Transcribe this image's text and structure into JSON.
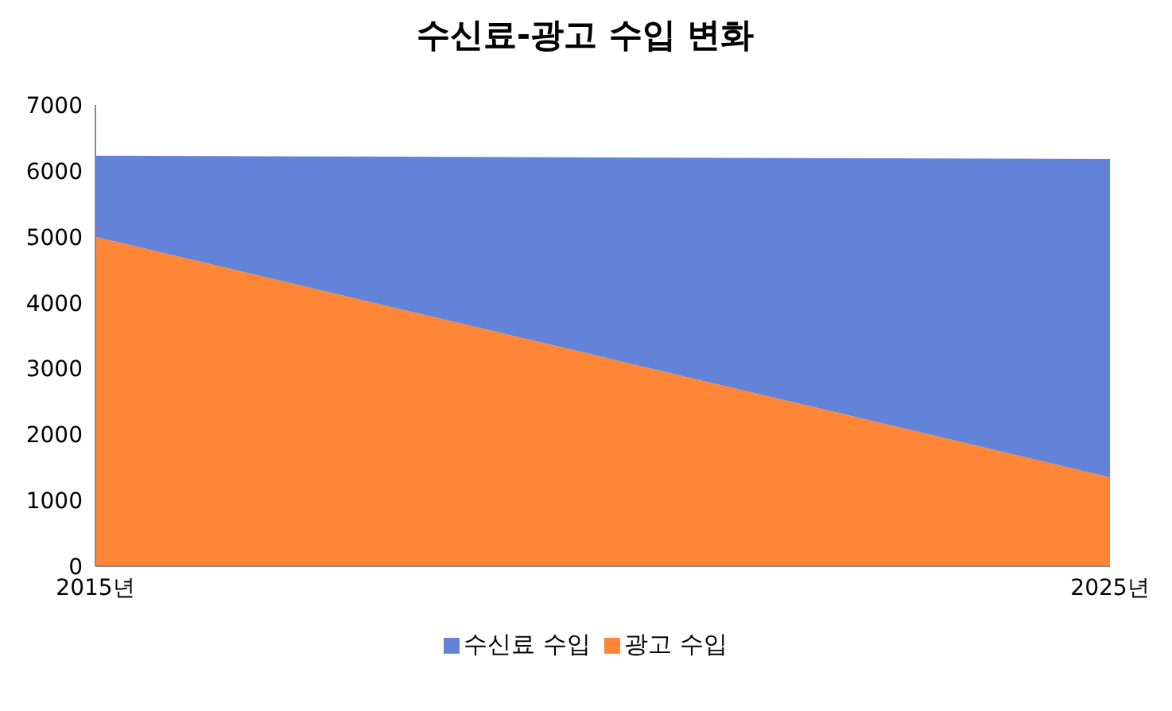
{
  "chart_data": {
    "type": "area",
    "title": "수신료-광고 수입 변화",
    "categories": [
      "2015년",
      "2025년"
    ],
    "stacked": true,
    "series": [
      {
        "name": "광고 수입",
        "color": "#fe8636",
        "values": [
          5000,
          1350
        ]
      },
      {
        "name": "수신료 수입",
        "color": "#6283d8",
        "values": [
          1230,
          4830
        ]
      }
    ],
    "ylim": [
      0,
      7000
    ],
    "yticks": [
      0,
      1000,
      2000,
      3000,
      4000,
      5000,
      6000,
      7000
    ],
    "grid": false,
    "legend": "bottom"
  }
}
